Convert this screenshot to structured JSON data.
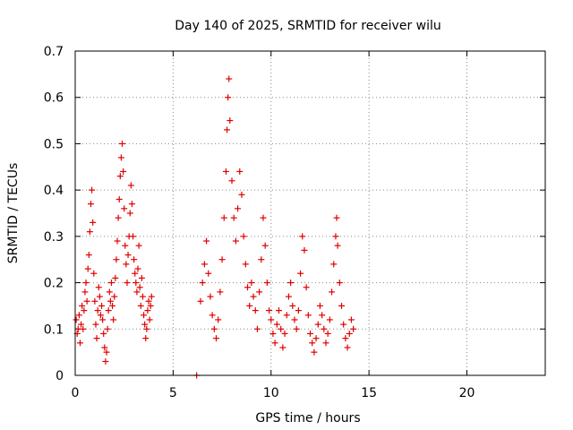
{
  "chart_data": {
    "type": "scatter",
    "title": "Day 140 of 2025, SRMTID for receiver wilu",
    "xlabel": "GPS time / hours",
    "ylabel": "SRMTID / TECUs",
    "xlim": [
      0,
      24
    ],
    "ylim": [
      0,
      0.7
    ],
    "xticks": [
      0,
      5,
      10,
      15,
      20
    ],
    "yticks": [
      0,
      0.1,
      0.2,
      0.3,
      0.4,
      0.5,
      0.6,
      0.7
    ],
    "xtick_labels": [
      "0",
      "5",
      "10",
      "15",
      "20"
    ],
    "ytick_labels": [
      "0",
      "0.1",
      "0.2",
      "0.3",
      "0.4",
      "0.5",
      "0.6",
      "0.7"
    ],
    "grid": true,
    "marker": "+",
    "color": "#e00000",
    "series": [
      {
        "name": "SRMTID",
        "points": [
          [
            0.05,
            0.12
          ],
          [
            0.1,
            0.09
          ],
          [
            0.15,
            0.1
          ],
          [
            0.2,
            0.13
          ],
          [
            0.25,
            0.07
          ],
          [
            0.3,
            0.11
          ],
          [
            0.35,
            0.15
          ],
          [
            0.4,
            0.1
          ],
          [
            0.45,
            0.14
          ],
          [
            0.5,
            0.18
          ],
          [
            0.55,
            0.2
          ],
          [
            0.6,
            0.16
          ],
          [
            0.65,
            0.23
          ],
          [
            0.7,
            0.26
          ],
          [
            0.75,
            0.31
          ],
          [
            0.8,
            0.37
          ],
          [
            0.85,
            0.4
          ],
          [
            0.9,
            0.33
          ],
          [
            0.95,
            0.22
          ],
          [
            1.0,
            0.16
          ],
          [
            1.05,
            0.11
          ],
          [
            1.1,
            0.08
          ],
          [
            1.15,
            0.14
          ],
          [
            1.2,
            0.19
          ],
          [
            1.25,
            0.17
          ],
          [
            1.3,
            0.13
          ],
          [
            1.35,
            0.15
          ],
          [
            1.4,
            0.12
          ],
          [
            1.45,
            0.09
          ],
          [
            1.5,
            0.06
          ],
          [
            1.55,
            0.03
          ],
          [
            1.6,
            0.05
          ],
          [
            1.65,
            0.1
          ],
          [
            1.7,
            0.14
          ],
          [
            1.75,
            0.18
          ],
          [
            1.8,
            0.16
          ],
          [
            1.85,
            0.2
          ],
          [
            1.9,
            0.15
          ],
          [
            1.95,
            0.12
          ],
          [
            2.0,
            0.17
          ],
          [
            2.05,
            0.21
          ],
          [
            2.1,
            0.25
          ],
          [
            2.15,
            0.29
          ],
          [
            2.2,
            0.34
          ],
          [
            2.25,
            0.38
          ],
          [
            2.3,
            0.43
          ],
          [
            2.35,
            0.47
          ],
          [
            2.4,
            0.5
          ],
          [
            2.45,
            0.44
          ],
          [
            2.5,
            0.36
          ],
          [
            2.55,
            0.28
          ],
          [
            2.6,
            0.24
          ],
          [
            2.65,
            0.2
          ],
          [
            2.7,
            0.26
          ],
          [
            2.75,
            0.3
          ],
          [
            2.8,
            0.35
          ],
          [
            2.85,
            0.41
          ],
          [
            2.9,
            0.37
          ],
          [
            2.95,
            0.3
          ],
          [
            3.0,
            0.25
          ],
          [
            3.05,
            0.22
          ],
          [
            3.1,
            0.2
          ],
          [
            3.15,
            0.18
          ],
          [
            3.2,
            0.23
          ],
          [
            3.25,
            0.28
          ],
          [
            3.3,
            0.19
          ],
          [
            3.35,
            0.15
          ],
          [
            3.4,
            0.21
          ],
          [
            3.45,
            0.17
          ],
          [
            3.5,
            0.13
          ],
          [
            3.55,
            0.11
          ],
          [
            3.6,
            0.08
          ],
          [
            3.65,
            0.1
          ],
          [
            3.7,
            0.14
          ],
          [
            3.75,
            0.16
          ],
          [
            3.8,
            0.12
          ],
          [
            3.85,
            0.15
          ],
          [
            3.9,
            0.17
          ],
          [
            6.2,
            0.0
          ],
          [
            6.4,
            0.16
          ],
          [
            6.5,
            0.2
          ],
          [
            6.6,
            0.24
          ],
          [
            6.7,
            0.29
          ],
          [
            6.8,
            0.22
          ],
          [
            6.9,
            0.17
          ],
          [
            7.0,
            0.13
          ],
          [
            7.1,
            0.1
          ],
          [
            7.2,
            0.08
          ],
          [
            7.3,
            0.12
          ],
          [
            7.4,
            0.18
          ],
          [
            7.5,
            0.25
          ],
          [
            7.6,
            0.34
          ],
          [
            7.7,
            0.44
          ],
          [
            7.75,
            0.53
          ],
          [
            7.8,
            0.6
          ],
          [
            7.85,
            0.64
          ],
          [
            7.9,
            0.55
          ],
          [
            8.0,
            0.42
          ],
          [
            8.1,
            0.34
          ],
          [
            8.2,
            0.29
          ],
          [
            8.3,
            0.36
          ],
          [
            8.4,
            0.44
          ],
          [
            8.5,
            0.39
          ],
          [
            8.6,
            0.3
          ],
          [
            8.7,
            0.24
          ],
          [
            8.8,
            0.19
          ],
          [
            8.9,
            0.15
          ],
          [
            9.0,
            0.2
          ],
          [
            9.1,
            0.17
          ],
          [
            9.2,
            0.14
          ],
          [
            9.3,
            0.1
          ],
          [
            9.4,
            0.18
          ],
          [
            9.5,
            0.25
          ],
          [
            9.6,
            0.34
          ],
          [
            9.7,
            0.28
          ],
          [
            9.8,
            0.2
          ],
          [
            9.9,
            0.14
          ],
          [
            10.0,
            0.12
          ],
          [
            10.1,
            0.09
          ],
          [
            10.2,
            0.07
          ],
          [
            10.3,
            0.11
          ],
          [
            10.4,
            0.14
          ],
          [
            10.5,
            0.1
          ],
          [
            10.6,
            0.06
          ],
          [
            10.7,
            0.09
          ],
          [
            10.8,
            0.13
          ],
          [
            10.9,
            0.17
          ],
          [
            11.0,
            0.2
          ],
          [
            11.1,
            0.15
          ],
          [
            11.2,
            0.12
          ],
          [
            11.3,
            0.1
          ],
          [
            11.4,
            0.14
          ],
          [
            11.5,
            0.22
          ],
          [
            11.6,
            0.3
          ],
          [
            11.7,
            0.27
          ],
          [
            11.8,
            0.19
          ],
          [
            11.9,
            0.13
          ],
          [
            12.0,
            0.09
          ],
          [
            12.1,
            0.07
          ],
          [
            12.2,
            0.05
          ],
          [
            12.3,
            0.08
          ],
          [
            12.4,
            0.11
          ],
          [
            12.5,
            0.15
          ],
          [
            12.6,
            0.13
          ],
          [
            12.7,
            0.1
          ],
          [
            12.8,
            0.07
          ],
          [
            12.9,
            0.09
          ],
          [
            13.0,
            0.12
          ],
          [
            13.1,
            0.18
          ],
          [
            13.2,
            0.24
          ],
          [
            13.3,
            0.3
          ],
          [
            13.35,
            0.34
          ],
          [
            13.4,
            0.28
          ],
          [
            13.5,
            0.2
          ],
          [
            13.6,
            0.15
          ],
          [
            13.7,
            0.11
          ],
          [
            13.8,
            0.08
          ],
          [
            13.9,
            0.06
          ],
          [
            14.0,
            0.09
          ],
          [
            14.1,
            0.12
          ],
          [
            14.2,
            0.1
          ]
        ]
      }
    ]
  }
}
